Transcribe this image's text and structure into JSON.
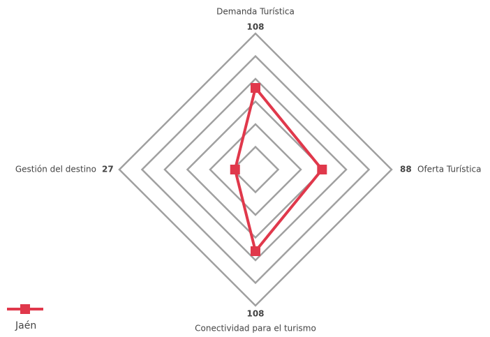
{
  "chart_data": {
    "type": "radar",
    "categories": [
      "Demanda Turística",
      "Oferta Turística",
      "Conectividad para el turismo",
      "Gestión del destino"
    ],
    "series": [
      {
        "name": "Jaén",
        "color": "#e0384b",
        "values": [
          108,
          88,
          108,
          27
        ]
      }
    ],
    "rlim": [
      0,
      180
    ],
    "rticks": [
      30,
      60,
      90,
      120,
      150,
      180
    ],
    "grid": true,
    "legend": "bottom-left"
  }
}
